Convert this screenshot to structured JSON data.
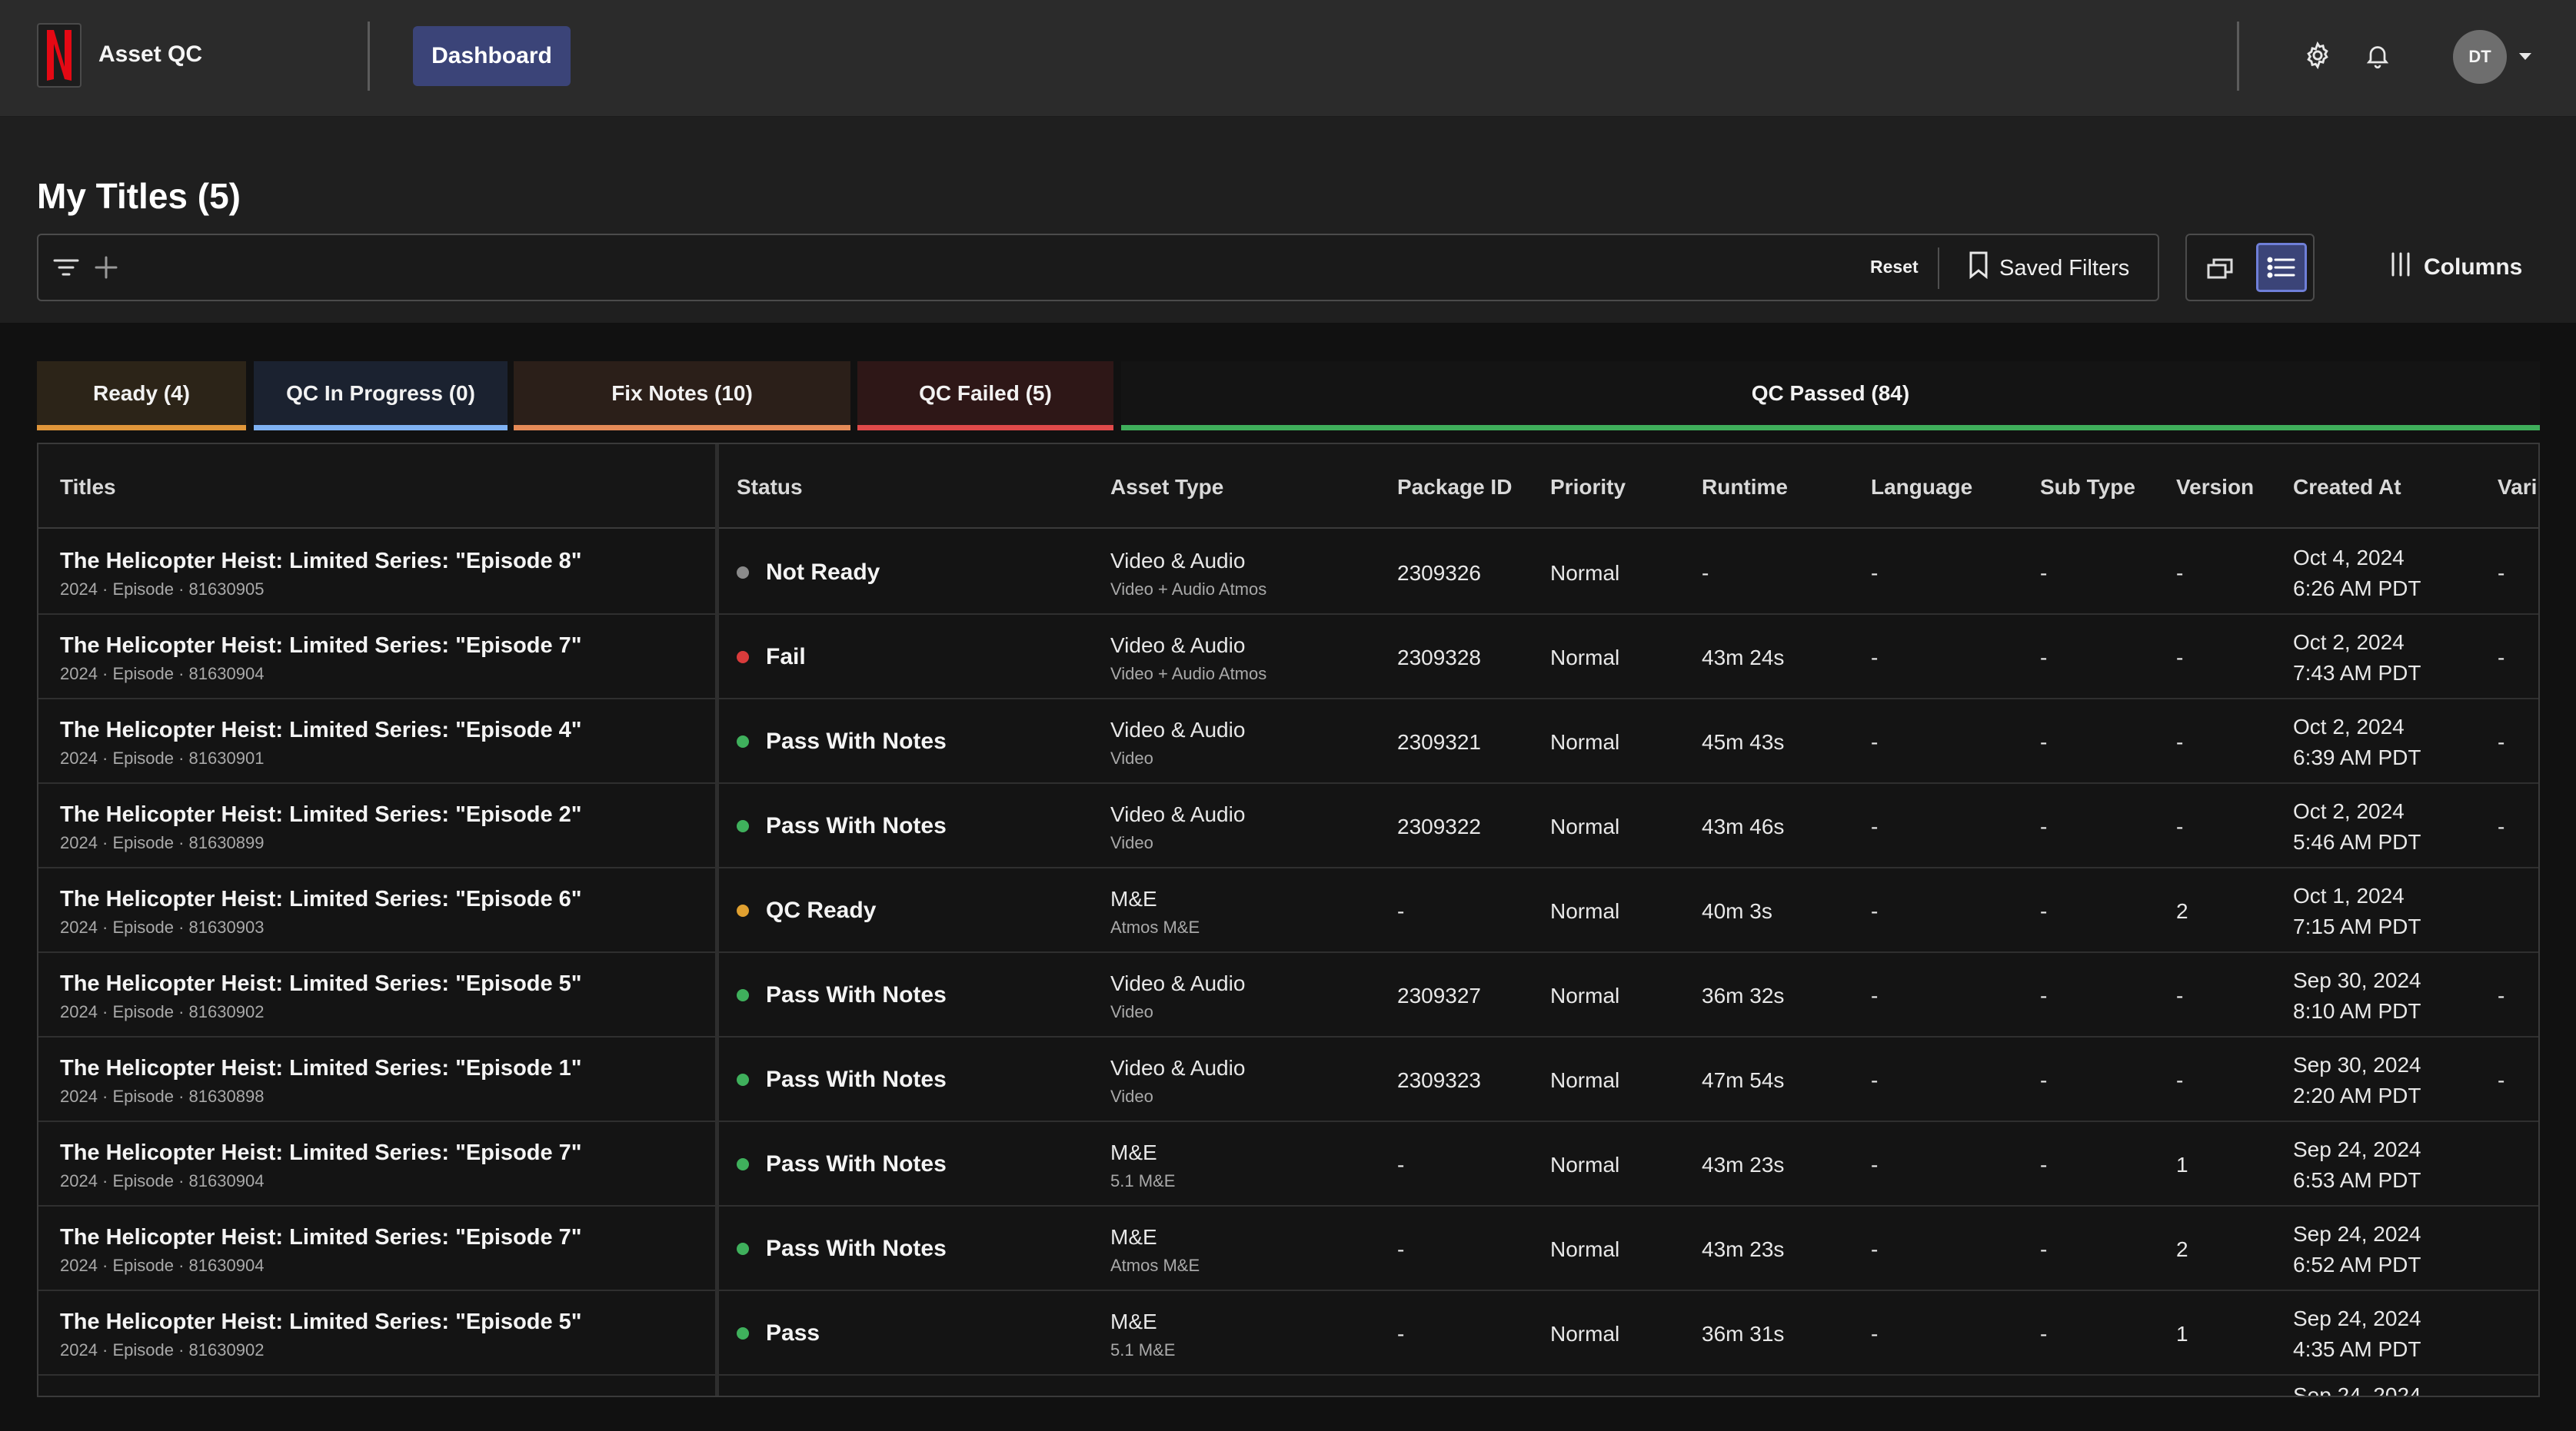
{
  "app": {
    "name": "Asset QC",
    "logo_letter": "N",
    "logo_color": "#e50914",
    "nav_active": "Dashboard",
    "avatar_initials": "DT"
  },
  "header": {
    "title": "My Titles (5)",
    "reset_label": "Reset",
    "saved_filters_label": "Saved Filters",
    "columns_label": "Columns"
  },
  "tabs": [
    {
      "label": "Ready (4)",
      "color": "#e0963a",
      "bg": "#2c2418"
    },
    {
      "label": "QC In Progress (0)",
      "color": "#7fb1f2",
      "bg": "#1b2230"
    },
    {
      "label": "Fix Notes (10)",
      "color": "#e58a57",
      "bg": "#2b1f19"
    },
    {
      "label": "QC Failed (5)",
      "color": "#e04a4a",
      "bg": "#2e1717"
    },
    {
      "label": "QC Passed (84)",
      "color": "#3fae5b",
      "bg": "#141414"
    }
  ],
  "columns": [
    "Titles",
    "Status",
    "Asset Type",
    "Package ID",
    "Priority",
    "Runtime",
    "Language",
    "Sub Type",
    "Version",
    "Created At",
    "Vari"
  ],
  "status_colors": {
    "Not Ready": "#8a8a8a",
    "Fail": "#d93b3b",
    "Pass With Notes": "#3fb05c",
    "QC Ready": "#e0a030",
    "Pass": "#3fb05c"
  },
  "rows": [
    {
      "title": "The Helicopter Heist: Limited Series: \"Episode 8\"",
      "meta": "2024 · Episode · 81630905",
      "status": "Not Ready",
      "asset_type": "Video & Audio",
      "asset_sub": "Video + Audio Atmos",
      "package_id": "2309326",
      "priority": "Normal",
      "runtime": "-",
      "language": "-",
      "sub_type": "-",
      "version": "-",
      "created_date": "Oct 4, 2024",
      "created_time": "6:26 AM PDT",
      "vari": "-"
    },
    {
      "title": "The Helicopter Heist: Limited Series: \"Episode 7\"",
      "meta": "2024 · Episode · 81630904",
      "status": "Fail",
      "asset_type": "Video & Audio",
      "asset_sub": "Video + Audio Atmos",
      "package_id": "2309328",
      "priority": "Normal",
      "runtime": "43m 24s",
      "language": "-",
      "sub_type": "-",
      "version": "-",
      "created_date": "Oct 2, 2024",
      "created_time": "7:43 AM PDT",
      "vari": "-"
    },
    {
      "title": "The Helicopter Heist: Limited Series: \"Episode 4\"",
      "meta": "2024 · Episode · 81630901",
      "status": "Pass With Notes",
      "asset_type": "Video & Audio",
      "asset_sub": "Video",
      "package_id": "2309321",
      "priority": "Normal",
      "runtime": "45m 43s",
      "language": "-",
      "sub_type": "-",
      "version": "-",
      "created_date": "Oct 2, 2024",
      "created_time": "6:39 AM PDT",
      "vari": "-"
    },
    {
      "title": "The Helicopter Heist: Limited Series: \"Episode 2\"",
      "meta": "2024 · Episode · 81630899",
      "status": "Pass With Notes",
      "asset_type": "Video & Audio",
      "asset_sub": "Video",
      "package_id": "2309322",
      "priority": "Normal",
      "runtime": "43m 46s",
      "language": "-",
      "sub_type": "-",
      "version": "-",
      "created_date": "Oct 2, 2024",
      "created_time": "5:46 AM PDT",
      "vari": "-"
    },
    {
      "title": "The Helicopter Heist: Limited Series: \"Episode 6\"",
      "meta": "2024 · Episode · 81630903",
      "status": "QC Ready",
      "asset_type": "M&E",
      "asset_sub": "Atmos M&E",
      "package_id": "-",
      "priority": "Normal",
      "runtime": "40m 3s",
      "language": "-",
      "sub_type": "-",
      "version": "2",
      "created_date": "Oct 1, 2024",
      "created_time": "7:15 AM PDT",
      "vari": ""
    },
    {
      "title": "The Helicopter Heist: Limited Series: \"Episode 5\"",
      "meta": "2024 · Episode · 81630902",
      "status": "Pass With Notes",
      "asset_type": "Video & Audio",
      "asset_sub": "Video",
      "package_id": "2309327",
      "priority": "Normal",
      "runtime": "36m 32s",
      "language": "-",
      "sub_type": "-",
      "version": "-",
      "created_date": "Sep 30, 2024",
      "created_time": "8:10 AM PDT",
      "vari": "-"
    },
    {
      "title": "The Helicopter Heist: Limited Series: \"Episode 1\"",
      "meta": "2024 · Episode · 81630898",
      "status": "Pass With Notes",
      "asset_type": "Video & Audio",
      "asset_sub": "Video",
      "package_id": "2309323",
      "priority": "Normal",
      "runtime": "47m 54s",
      "language": "-",
      "sub_type": "-",
      "version": "-",
      "created_date": "Sep 30, 2024",
      "created_time": "2:20 AM PDT",
      "vari": "-"
    },
    {
      "title": "The Helicopter Heist: Limited Series: \"Episode 7\"",
      "meta": "2024 · Episode · 81630904",
      "status": "Pass With Notes",
      "asset_type": "M&E",
      "asset_sub": "5.1 M&E",
      "package_id": "-",
      "priority": "Normal",
      "runtime": "43m 23s",
      "language": "-",
      "sub_type": "-",
      "version": "1",
      "created_date": "Sep 24, 2024",
      "created_time": "6:53 AM PDT",
      "vari": ""
    },
    {
      "title": "The Helicopter Heist: Limited Series: \"Episode 7\"",
      "meta": "2024 · Episode · 81630904",
      "status": "Pass With Notes",
      "asset_type": "M&E",
      "asset_sub": "Atmos M&E",
      "package_id": "-",
      "priority": "Normal",
      "runtime": "43m 23s",
      "language": "-",
      "sub_type": "-",
      "version": "2",
      "created_date": "Sep 24, 2024",
      "created_time": "6:52 AM PDT",
      "vari": ""
    },
    {
      "title": "The Helicopter Heist: Limited Series: \"Episode 5\"",
      "meta": "2024 · Episode · 81630902",
      "status": "Pass",
      "asset_type": "M&E",
      "asset_sub": "5.1 M&E",
      "package_id": "-",
      "priority": "Normal",
      "runtime": "36m 31s",
      "language": "-",
      "sub_type": "-",
      "version": "1",
      "created_date": "Sep 24, 2024",
      "created_time": "4:35 AM PDT",
      "vari": ""
    }
  ],
  "partial_row_date": "Sep 24, 2024"
}
